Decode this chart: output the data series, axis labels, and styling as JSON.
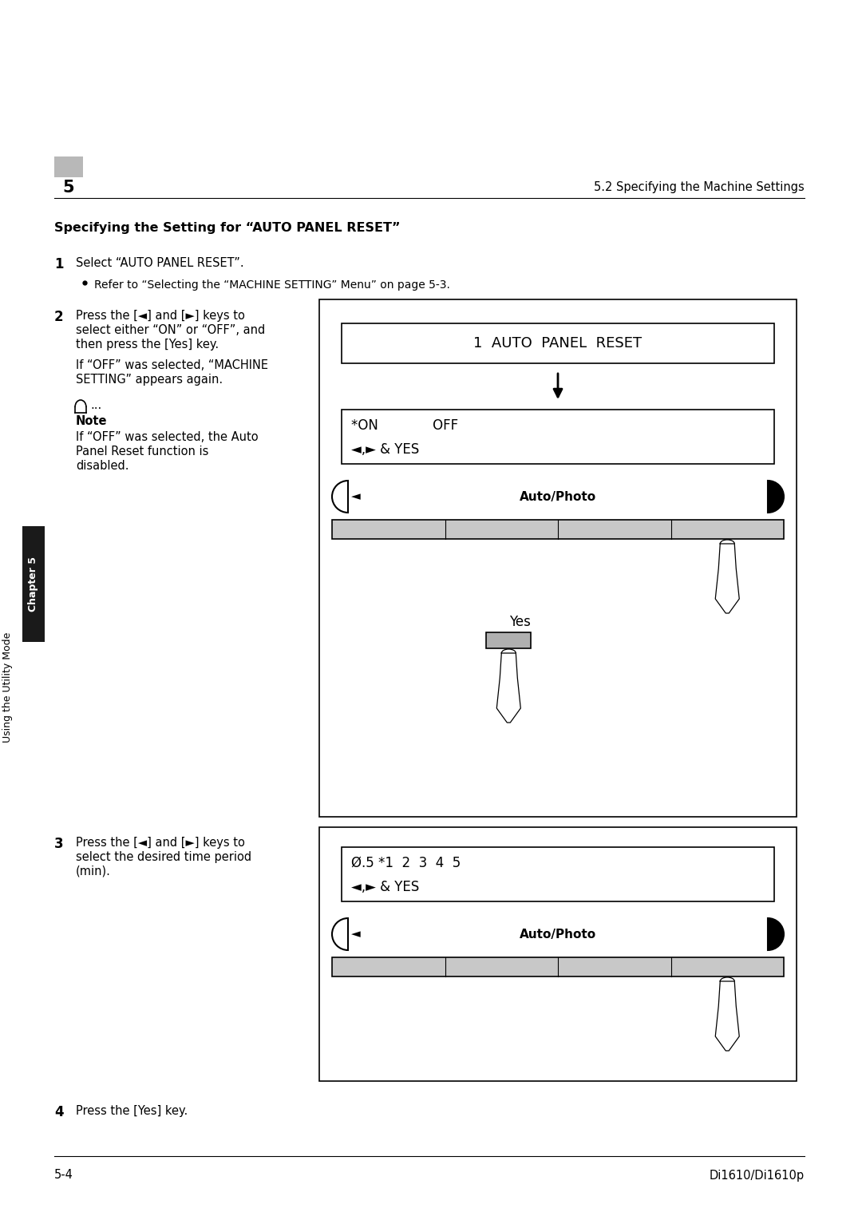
{
  "page_number": "5-4",
  "page_right": "Di1610/Di1610p",
  "chapter_label": "Chapter 5",
  "side_label": "Using the Utility Mode",
  "header_number": "5",
  "header_right": "5.2 Specifying the Machine Settings",
  "section_title": "Specifying the Setting for “AUTO PANEL RESET”",
  "step1_num": "1",
  "step1_text": "Select “AUTO PANEL RESET”.",
  "step1_bullet": "Refer to “Selecting the “MACHINE SETTING” Menu” on page 5-3.",
  "step2_num": "2",
  "step2_line1": "Press the [◄] and [►] keys to",
  "step2_line2": "select either “ON” or “OFF”, and",
  "step2_line3": "then press the [Yes] key.",
  "step2_note1": "If “OFF” was selected, “MACHINE",
  "step2_note2": "SETTING” appears again.",
  "note_label": "Note",
  "note_line1": "If “OFF” was selected, the Auto",
  "note_line2": "Panel Reset function is",
  "note_line3": "disabled.",
  "step3_num": "3",
  "step3_line1": "Press the [◄] and [►] keys to",
  "step3_line2": "select the desired time period",
  "step3_line3": "(min).",
  "step4_num": "4",
  "step4_text": "Press the [Yes] key.",
  "display1_text": "1  AUTO  PANEL  RESET",
  "display2_line1": "*ON             OFF",
  "display2_line2": "◄,► & YES",
  "display3_line1": "Ø.5 *1  2  3  4  5",
  "display3_line2": "◄,► & YES",
  "autophoto_label": "Auto/Photo",
  "yes_label": "Yes",
  "bg_color": "#ffffff",
  "text_color": "#000000",
  "chapter_bg": "#1a1a1a",
  "chapter_text": "#ffffff"
}
